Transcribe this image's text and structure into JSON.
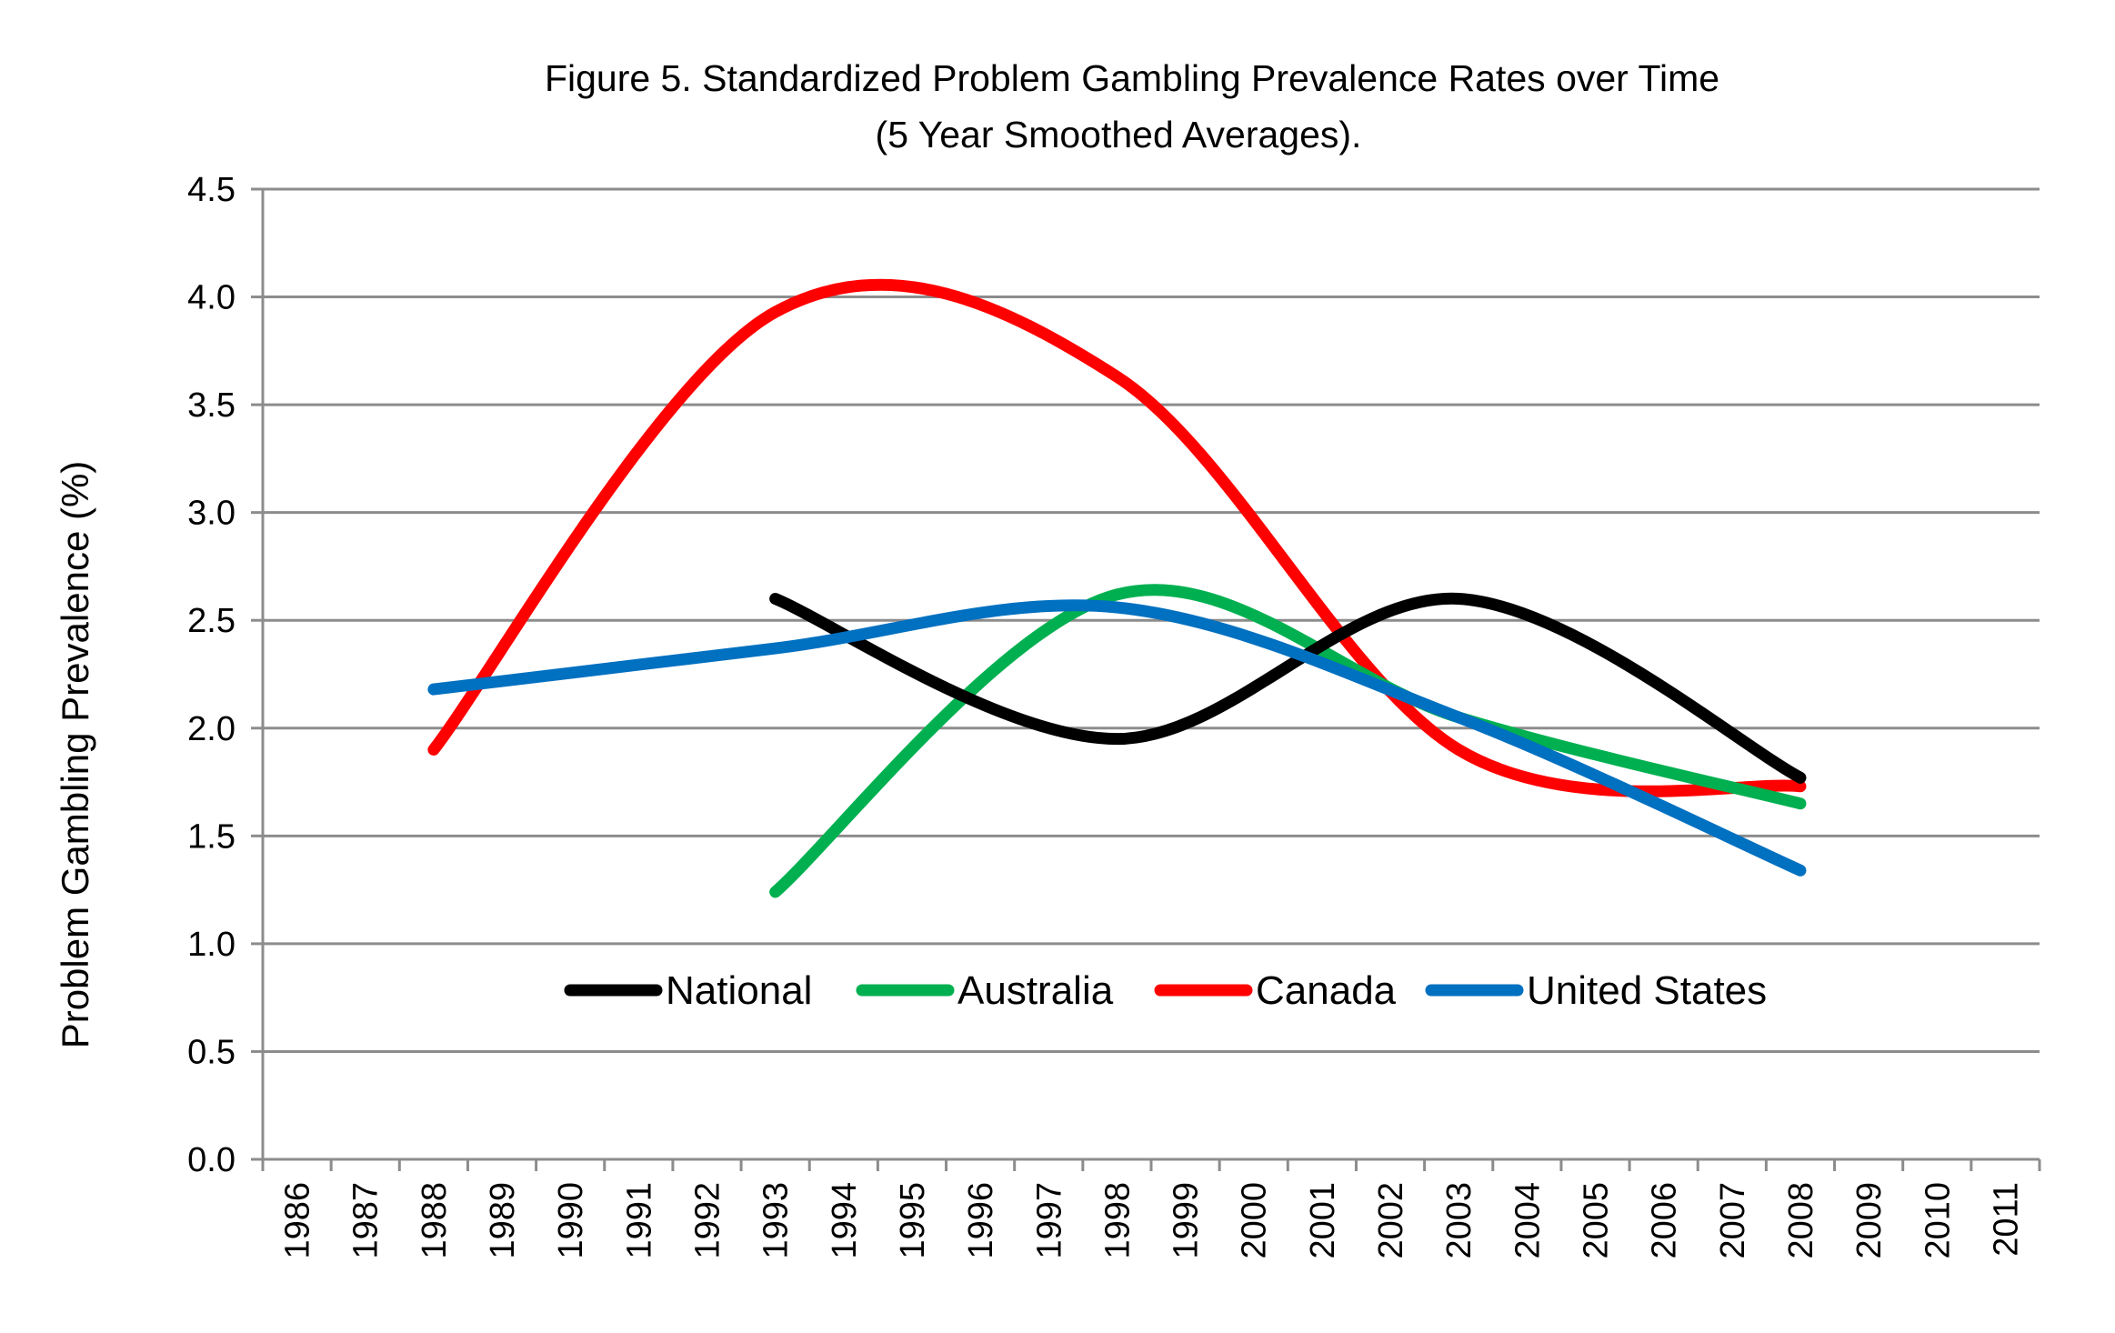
{
  "chart_data": {
    "type": "line",
    "title_line1": "Figure 5.  Standardized Problem Gambling Prevalence Rates over Time",
    "title_line2": "(5 Year Smoothed Averages).",
    "xlabel": "",
    "ylabel": "Problem Gambling Prevalence (%)",
    "ylim": [
      0,
      4.5
    ],
    "yticks": [
      "0.0",
      "0.5",
      "1.0",
      "1.5",
      "2.0",
      "2.5",
      "3.0",
      "3.5",
      "4.0",
      "4.5"
    ],
    "categories": [
      "1986",
      "1987",
      "1988",
      "1989",
      "1990",
      "1991",
      "1992",
      "1993",
      "1994",
      "1995",
      "1996",
      "1997",
      "1998",
      "1999",
      "2000",
      "2001",
      "2002",
      "2003",
      "2004",
      "2005",
      "2006",
      "2007",
      "2008",
      "2009",
      "2010",
      "2011"
    ],
    "grid": true,
    "legend_position": "inside-bottom",
    "series": [
      {
        "name": "National",
        "color": "#000000",
        "x": [
          "1993",
          "1998",
          "2003",
          "2008"
        ],
        "values": [
          2.6,
          1.95,
          2.6,
          1.77
        ]
      },
      {
        "name": "Australia",
        "color": "#00b050",
        "x": [
          "1993",
          "1998",
          "2003",
          "2008"
        ],
        "values": [
          1.24,
          2.62,
          2.05,
          1.65
        ]
      },
      {
        "name": "Canada",
        "color": "#ff0000",
        "x": [
          "1988",
          "1993",
          "1998",
          "2003",
          "2008"
        ],
        "values": [
          1.9,
          3.93,
          3.63,
          1.9,
          1.73
        ]
      },
      {
        "name": "United States",
        "color": "#0070c0",
        "x": [
          "1988",
          "1993",
          "1998",
          "2003",
          "2008"
        ],
        "values": [
          2.18,
          2.37,
          2.56,
          2.05,
          1.34
        ]
      }
    ]
  }
}
